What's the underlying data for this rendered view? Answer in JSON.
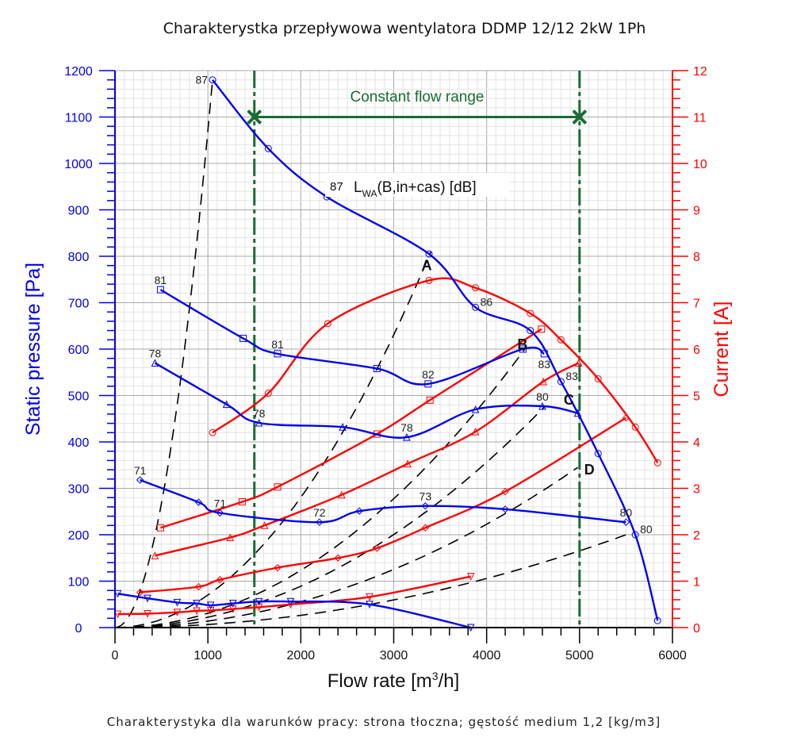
{
  "chart_data": {
    "type": "line",
    "title": "Charakterystka przepływowa wentylatora DDMP 12/12 2kW 1Ph",
    "footnote": "Charakterystyka dla warunków pracy: strona tłoczna; gęstość medium 1,2 [kg/m3]",
    "xlabel_main": "Flow rate [m",
    "xlabel_sup": "3",
    "xlabel_tail": "/h]",
    "ylabel": "Static pressure [Pa]",
    "y2label": "Current [A]",
    "xlim": [
      0,
      6000
    ],
    "ylim": [
      0,
      1200
    ],
    "y2lim": [
      0,
      12
    ],
    "x_ticks": [
      "0",
      "1000",
      "2000",
      "3000",
      "4000",
      "5000",
      "6000"
    ],
    "y_ticks": [
      "0",
      "100",
      "200",
      "300",
      "400",
      "500",
      "600",
      "700",
      "800",
      "900",
      "1000",
      "1100",
      "1200"
    ],
    "y2_ticks": [
      "0",
      "1",
      "2",
      "3",
      "4",
      "5",
      "6",
      "7",
      "8",
      "9",
      "10",
      "11",
      "12"
    ],
    "grid": true,
    "colors": {
      "pressure": "#0000ee",
      "current": "#ff0000",
      "range": "#1a6b35",
      "system": "#000000",
      "axis_left": "#0000ee",
      "axis_right": "#ff0000"
    },
    "annotations": {
      "range_label": "Constant flow range",
      "range_x": [
        1500,
        5000
      ],
      "range_y": 1100,
      "noise_label_main": "L",
      "noise_label_sub": "WA",
      "noise_label_tail": "(B,in+cas) [dB]",
      "noise_label_value": "87",
      "points": [
        {
          "label": "A",
          "x": 3300,
          "y": 770
        },
        {
          "label": "B",
          "x": 4330,
          "y": 600
        },
        {
          "label": "C",
          "x": 4830,
          "y": 480
        },
        {
          "label": "D",
          "x": 5050,
          "y": 330
        }
      ]
    },
    "pressure_series": [
      {
        "name": "curve-1",
        "marker": "circle",
        "x": [
          1050,
          1650,
          2280,
          3380,
          3880,
          4470,
          4800,
          5200,
          5600,
          5840
        ],
        "y": [
          1180,
          1032,
          928,
          805,
          690,
          640,
          530,
          375,
          200,
          15
        ],
        "labels": [
          {
            "text": "87",
            "x": 1050,
            "y": 1180,
            "pos": "left"
          },
          {
            "text": "86",
            "x": 3880,
            "y": 690,
            "pos": "right"
          },
          {
            "text": "83",
            "x": 4800,
            "y": 530,
            "pos": "right"
          },
          {
            "text": "80",
            "x": 5600,
            "y": 200,
            "pos": "right"
          }
        ]
      },
      {
        "name": "curve-2",
        "marker": "square",
        "x": [
          490,
          1380,
          1750,
          2820,
          3370,
          4390,
          4620
        ],
        "y": [
          728,
          623,
          590,
          558,
          525,
          600,
          590
        ],
        "labels": [
          {
            "text": "81",
            "x": 490,
            "y": 728,
            "pos": "above"
          },
          {
            "text": "81",
            "x": 1750,
            "y": 590,
            "pos": "above"
          },
          {
            "text": "82",
            "x": 3370,
            "y": 525,
            "pos": "above"
          },
          {
            "text": "83",
            "x": 4620,
            "y": 590,
            "pos": "below"
          }
        ]
      },
      {
        "name": "curve-3",
        "marker": "triangle",
        "x": [
          430,
          1200,
          1550,
          2450,
          3140,
          3880,
          4600,
          4980
        ],
        "y": [
          570,
          481,
          441,
          432,
          410,
          470,
          477,
          462
        ],
        "labels": [
          {
            "text": "78",
            "x": 430,
            "y": 570,
            "pos": "above"
          },
          {
            "text": "78",
            "x": 1550,
            "y": 441,
            "pos": "above"
          },
          {
            "text": "78",
            "x": 3140,
            "y": 410,
            "pos": "above"
          },
          {
            "text": "80",
            "x": 4600,
            "y": 477,
            "pos": "above"
          }
        ]
      },
      {
        "name": "curve-4",
        "marker": "diamond",
        "x": [
          270,
          900,
          1130,
          2200,
          2630,
          3340,
          4200,
          5500
        ],
        "y": [
          318,
          270,
          247,
          227,
          251,
          262,
          255,
          227
        ],
        "labels": [
          {
            "text": "71",
            "x": 270,
            "y": 318,
            "pos": "above"
          },
          {
            "text": "71",
            "x": 1130,
            "y": 247,
            "pos": "above"
          },
          {
            "text": "72",
            "x": 2200,
            "y": 227,
            "pos": "above"
          },
          {
            "text": "73",
            "x": 3340,
            "y": 262,
            "pos": "above"
          },
          {
            "text": "80",
            "x": 5500,
            "y": 227,
            "pos": "above"
          }
        ]
      },
      {
        "name": "curve-5",
        "marker": "triangle-down",
        "x": [
          30,
          350,
          670,
          880,
          1030,
          1270,
          1550,
          1890,
          2740,
          3830
        ],
        "y": [
          73,
          63,
          54,
          52,
          48,
          52,
          56,
          56,
          50,
          0
        ],
        "labels": []
      }
    ],
    "current_series": [
      {
        "name": "current-1",
        "marker": "circle",
        "x": [
          1050,
          1650,
          2290,
          3380,
          3880,
          4470,
          4800,
          5200,
          5600,
          5840
        ],
        "y": [
          4.2,
          5.05,
          6.55,
          7.48,
          7.32,
          6.77,
          6.2,
          5.36,
          4.32,
          3.55
        ]
      },
      {
        "name": "current-2",
        "marker": "square",
        "x": [
          490,
          1370,
          1750,
          2820,
          3390,
          4590
        ],
        "y": [
          2.15,
          2.71,
          3.03,
          4.17,
          4.9,
          6.43
        ]
      },
      {
        "name": "current-3",
        "marker": "triangle",
        "x": [
          430,
          1240,
          1610,
          2440,
          3150,
          3880,
          4610,
          4990
        ],
        "y": [
          1.55,
          1.94,
          2.2,
          2.86,
          3.53,
          4.22,
          5.3,
          5.7
        ]
      },
      {
        "name": "current-4",
        "marker": "diamond",
        "x": [
          270,
          900,
          1130,
          1750,
          2400,
          2820,
          3340,
          4200,
          5500
        ],
        "y": [
          0.76,
          0.88,
          1.03,
          1.29,
          1.5,
          1.71,
          2.15,
          2.93,
          4.52
        ]
      },
      {
        "name": "current-5",
        "marker": "triangle-down",
        "x": [
          30,
          350,
          670,
          880,
          1030,
          1270,
          1550,
          1890,
          2740,
          3830
        ],
        "y": [
          0.29,
          0.3,
          0.33,
          0.36,
          0.37,
          0.4,
          0.44,
          0.5,
          0.66,
          1.1
        ]
      }
    ],
    "system_curves": [
      {
        "x_end": 1050,
        "y_end": 1180
      },
      {
        "x_end": 3400,
        "y_end": 810
      },
      {
        "x_end": 4430,
        "y_end": 605
      },
      {
        "x_end": 4620,
        "y_end": 475
      },
      {
        "x_end": 4980,
        "y_end": 345
      },
      {
        "x_end": 5500,
        "y_end": 200
      }
    ]
  }
}
